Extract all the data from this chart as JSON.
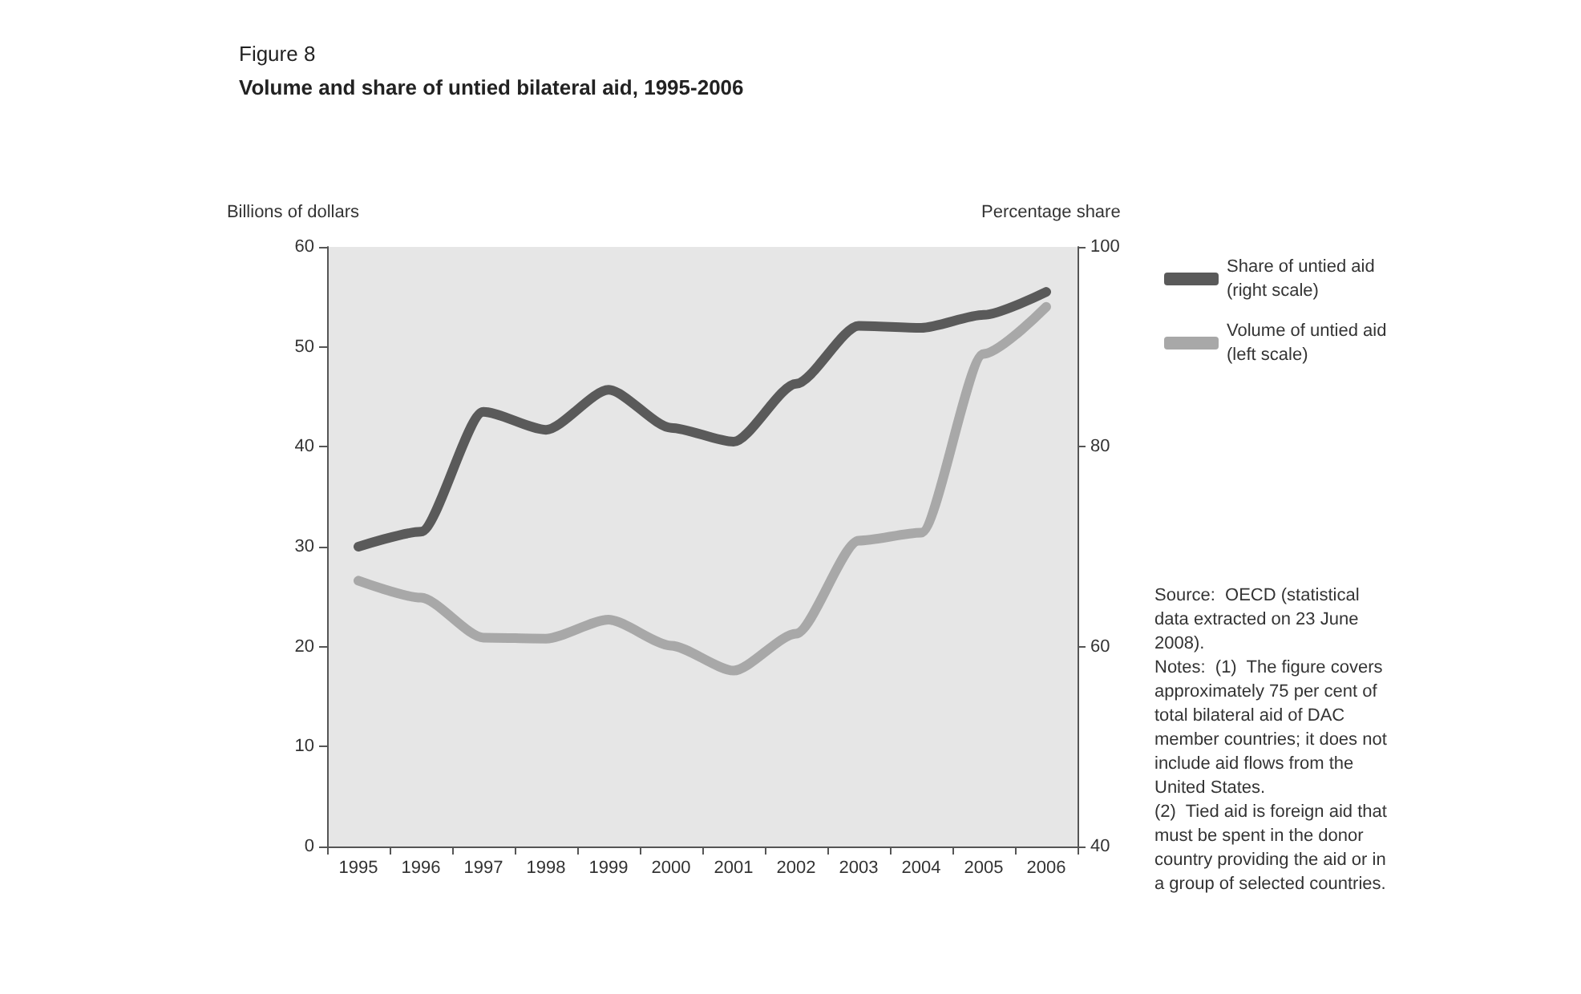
{
  "chart_data": {
    "type": "line",
    "title": "Figure 8",
    "subtitle": "Volume and share of untied bilateral aid, 1995-2006",
    "ylabel": "Billions of dollars",
    "y2label": "Percentage share",
    "categories": [
      "1995",
      "1996",
      "1997",
      "1998",
      "1999",
      "2000",
      "2001",
      "2002",
      "2003",
      "2004",
      "2005",
      "2006"
    ],
    "series": [
      {
        "name": "Share of untied aid\n(right scale)",
        "color": "#5a5a5a",
        "axis": "y2",
        "values": [
          70,
          71.5,
          83.5,
          81.7,
          85.7,
          81.9,
          80.5,
          86.3,
          92.1,
          91.9,
          93.2,
          95.5
        ]
      },
      {
        "name": "Volume of untied aid\n(left scale)",
        "color": "#a8a8a8",
        "values": [
          26.6,
          24.9,
          20.9,
          20.8,
          22.7,
          20.1,
          17.6,
          21.3,
          30.6,
          31.4,
          49.3,
          54.0
        ]
      }
    ],
    "ylim": [
      0,
      60
    ],
    "yticks": [
      0,
      10,
      20,
      30,
      40,
      50,
      60
    ],
    "y2lim": [
      40,
      100
    ],
    "y2ticks": [
      40,
      60,
      80,
      100
    ],
    "grid": false,
    "legend": "right",
    "marker": "none",
    "line_style": "solid",
    "annotations": [
      "Source:  OECD (statistical data extracted on 23 June 2008).",
      "Notes:  (1)  The figure covers approximately 75 per cent of total bilateral aid of DAC member countries; it does not include aid flows from the United States.",
      "(2)  Tied aid is foreign aid that must be spent in the donor country providing the aid or in a group of selected countries."
    ]
  }
}
